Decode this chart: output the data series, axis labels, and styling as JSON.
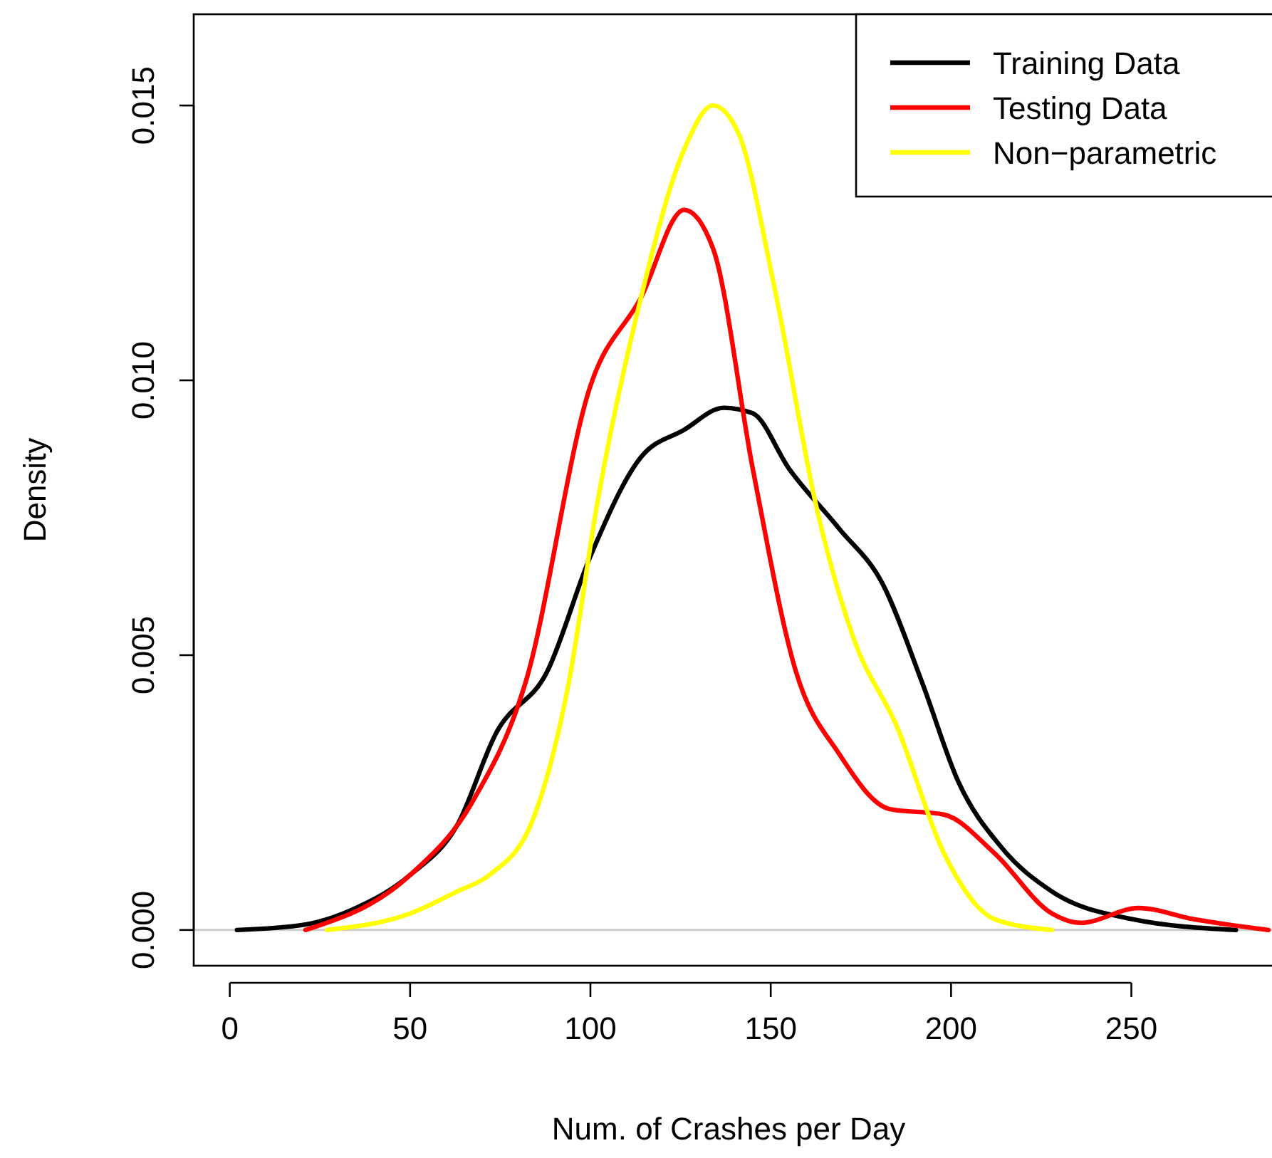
{
  "chart_data": {
    "type": "line",
    "xlabel": "Num. of Crashes per Day",
    "ylabel": "Density",
    "xlim": [
      -10,
      289
    ],
    "xticks": [
      0,
      50,
      100,
      150,
      200,
      250
    ],
    "ylim": [
      -0.00065,
      0.01666
    ],
    "yticks": [
      {
        "value": 0,
        "label": "0.000"
      },
      {
        "value": 0.005,
        "label": "0.005"
      },
      {
        "value": 0.01,
        "label": "0.010"
      },
      {
        "value": 0.015,
        "label": "0.015"
      }
    ],
    "grid": false,
    "legend": "top right",
    "line_style": "solid",
    "marker": "none",
    "ref_lines": [
      {
        "axis": "y",
        "value": 0,
        "color": "#cccccc"
      }
    ],
    "series": [
      {
        "name": "Training Data",
        "color": "#000000",
        "x": [
          2,
          21,
          35,
          50,
          63,
          74,
          88,
          100,
          114,
          126,
          137,
          145,
          155,
          169,
          181,
          192,
          202,
          214,
          228,
          250,
          279
        ],
        "values": [
          0,
          0.0001,
          0.0004,
          0.001,
          0.0019,
          0.0036,
          0.0047,
          0.0068,
          0.0086,
          0.0091,
          0.0095,
          0.0094,
          0.0084,
          0.0073,
          0.0063,
          0.0045,
          0.0027,
          0.0015,
          0.0007,
          0.0002,
          0
        ]
      },
      {
        "name": "Testing Data",
        "color": "#ff0000",
        "x": [
          21,
          50,
          67,
          82,
          100,
          114,
          126,
          134,
          145,
          157,
          169,
          183,
          198,
          212,
          228,
          236,
          252,
          267,
          288
        ],
        "values": [
          0,
          0.001,
          0.0023,
          0.0045,
          0.0099,
          0.0115,
          0.0131,
          0.0124,
          0.0084,
          0.0047,
          0.0032,
          0.0022,
          0.0021,
          0.0014,
          0.0003,
          0.00013,
          0.0004,
          0.0002,
          0
        ]
      },
      {
        "name": "Non−parametric",
        "color": "#ffff00",
        "x": [
          27,
          50,
          63,
          72,
          84,
          94,
          102,
          114,
          126,
          134,
          141,
          151,
          163,
          173,
          185,
          198,
          212,
          228
        ],
        "values": [
          0,
          0.0003,
          0.0007,
          0.001,
          0.002,
          0.0045,
          0.0078,
          0.0115,
          0.0142,
          0.015,
          0.0145,
          0.0117,
          0.0076,
          0.0053,
          0.0037,
          0.0014,
          0.0002,
          0
        ]
      }
    ]
  }
}
